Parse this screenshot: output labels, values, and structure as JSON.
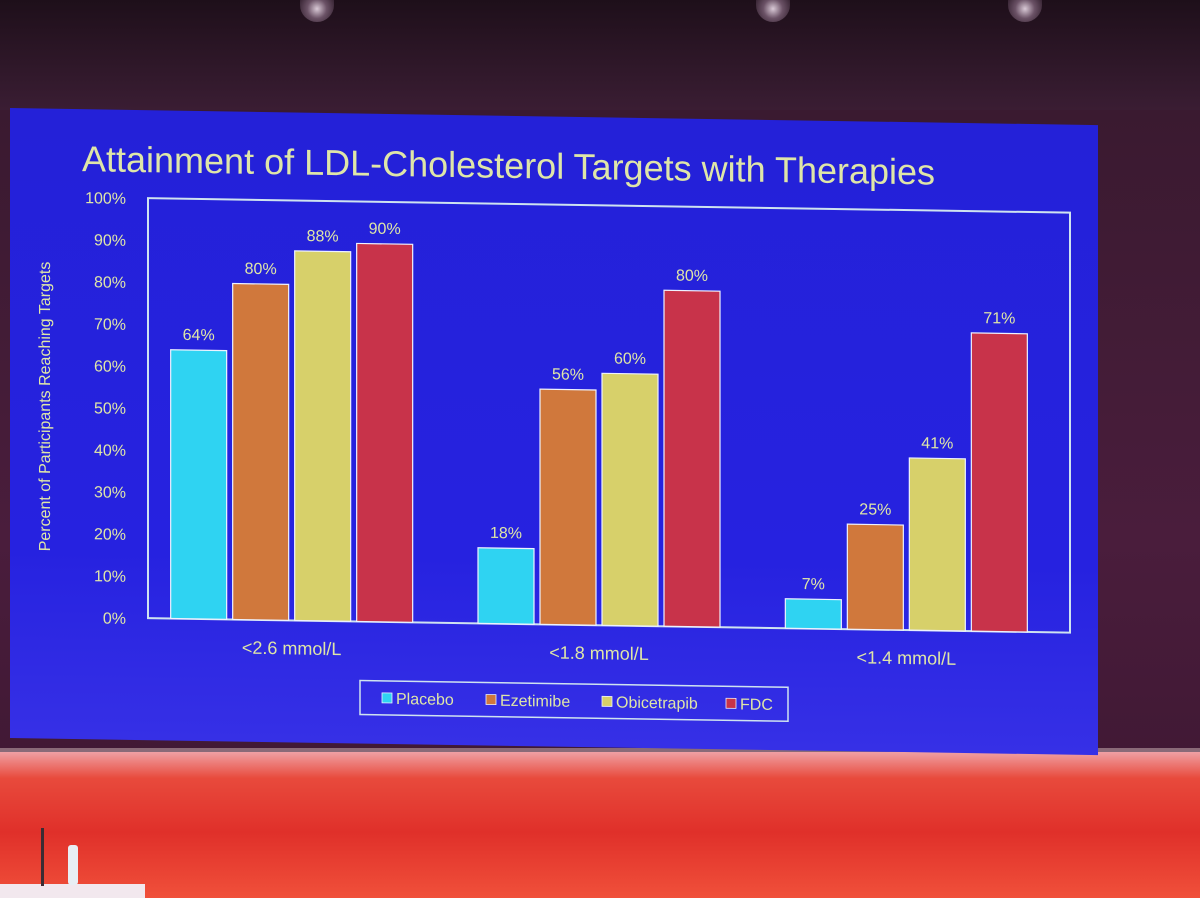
{
  "chart_data": {
    "type": "bar",
    "title": "Attainment of LDL-Cholesterol Targets with Therapies",
    "xlabel": "",
    "ylabel": "Percent of Participants Reaching Targets",
    "ylim": [
      0,
      100
    ],
    "yticks": [
      "0%",
      "10%",
      "20%",
      "30%",
      "40%",
      "50%",
      "60%",
      "70%",
      "80%",
      "90%",
      "100%"
    ],
    "categories": [
      "<2.6 mmol/L",
      "<1.8 mmol/L",
      "<1.4 mmol/L"
    ],
    "series": [
      {
        "name": "Placebo",
        "values": [
          64,
          18,
          7
        ],
        "labels": [
          "64%",
          "18%",
          "7%"
        ],
        "color": "#2fd3f2"
      },
      {
        "name": "Ezetimibe",
        "values": [
          80,
          56,
          25
        ],
        "labels": [
          "80%",
          "56%",
          "25%"
        ],
        "color": "#d0783c"
      },
      {
        "name": "Obicetrapib",
        "values": [
          88,
          60,
          41
        ],
        "labels": [
          "88%",
          "60%",
          "41%"
        ],
        "color": "#d7d06a"
      },
      {
        "name": "FDC",
        "values": [
          90,
          80,
          71
        ],
        "labels": [
          "90%",
          "80%",
          "71%"
        ],
        "color": "#c8334a"
      }
    ],
    "grid": false,
    "legend": "bottom-center"
  },
  "colors": {
    "slide_background": "#2622e0",
    "text": "#dfe6a8",
    "axis_frame": "#cfe3f0"
  }
}
